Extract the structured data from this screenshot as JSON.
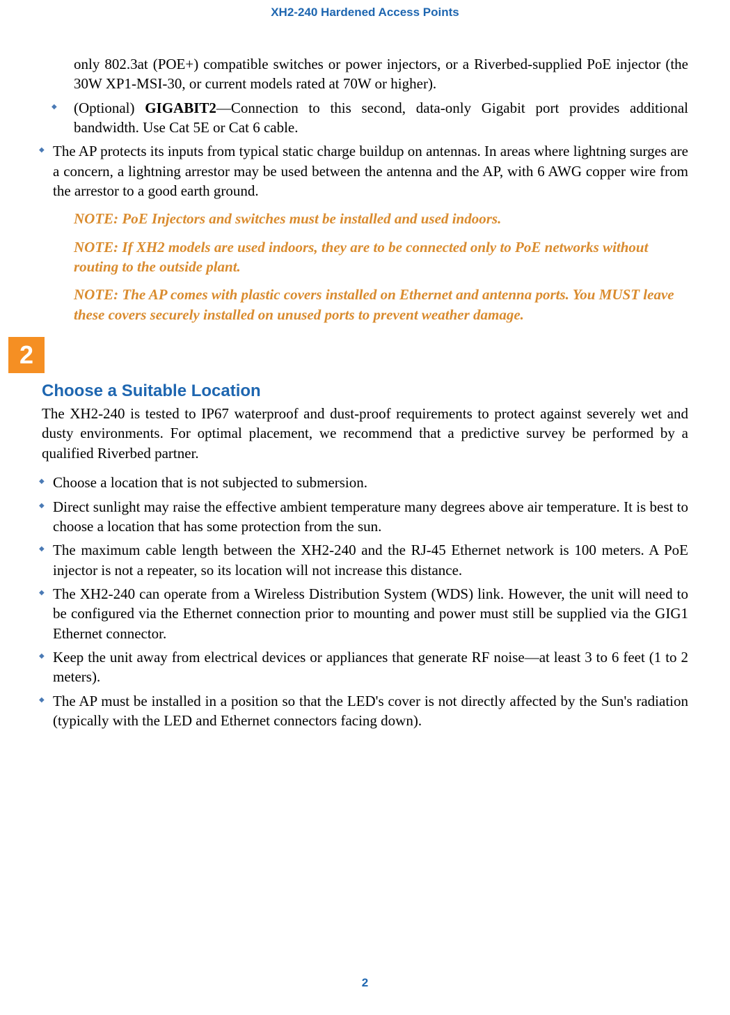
{
  "header": {
    "title": "XH2-240 Hardened Access Points"
  },
  "colors": {
    "brand_blue": "#1e66b0",
    "bullet_blue": "#4a7ab5",
    "note_orange": "#d98b2e",
    "badge_orange": "#f58f23",
    "text_black": "#000000",
    "background": "#ffffff"
  },
  "typography": {
    "body_font": "Palatino Linotype",
    "heading_font": "Arial",
    "body_size_pt": 16,
    "heading_size_pt": 18,
    "header_size_pt": 13
  },
  "intro": {
    "continued_text": "only 802.3at (POE+) compatible switches or power injectors, or a Riverbed-supplied PoE injector (the 30W XP1-MSI-30, or current models rated at 70W or higher).",
    "gigabit2_prefix": "(Optional) ",
    "gigabit2_bold": "GIGABIT2",
    "gigabit2_rest": "—Connection to this second, data-only Gigabit port provides additional bandwidth. Use Cat 5E or Cat 6 cable.",
    "ap_protect": "The AP protects its inputs from typical static charge buildup on antennas. In areas where lightning surges are a concern, a lightning arrestor may be used between the antenna and the AP, with 6 AWG copper wire from the arrestor to a good earth ground."
  },
  "notes": {
    "n1": "NOTE: PoE Injectors and switches must be installed and used indoors.",
    "n2": "NOTE: If XH2 models are used indoors, they are to be connected only to PoE networks without routing to the outside plant.",
    "n3": "NOTE: The AP comes with plastic covers installed on Ethernet and antenna ports. You MUST leave these covers securely installed on unused ports to prevent weather damage."
  },
  "step": {
    "number": "2"
  },
  "section": {
    "heading": "Choose a Suitable Location",
    "body": "The XH2-240 is tested to IP67 waterproof and dust-proof requirements to protect against severely wet and dusty environments. For optimal placement, we recommend that a predictive survey be performed by a qualified Riverbed partner.",
    "bullets": [
      "Choose a location that is not subjected to submersion.",
      "Direct sunlight may raise the effective ambient temperature many degrees above air temperature. It is best to choose a location that has some protection from the sun.",
      "The maximum cable length between the XH2-240 and the RJ-45 Ethernet network is 100 meters. A PoE injector is not a repeater, so its location will not increase this distance.",
      "The XH2-240 can operate from a Wireless Distribution System (WDS) link. However, the unit will need to be configured via the Ethernet connection prior to mounting and power must still be supplied via the GIG1 Ethernet connector.",
      "Keep the unit away from electrical devices or appliances that generate RF noise—at least 3 to 6 feet (1 to 2 meters).",
      "The AP must be installed in a position so that the LED's cover is not directly affected by the Sun's radiation (typically with the LED and Ethernet connectors facing down)."
    ]
  },
  "footer": {
    "page_number": "2"
  }
}
